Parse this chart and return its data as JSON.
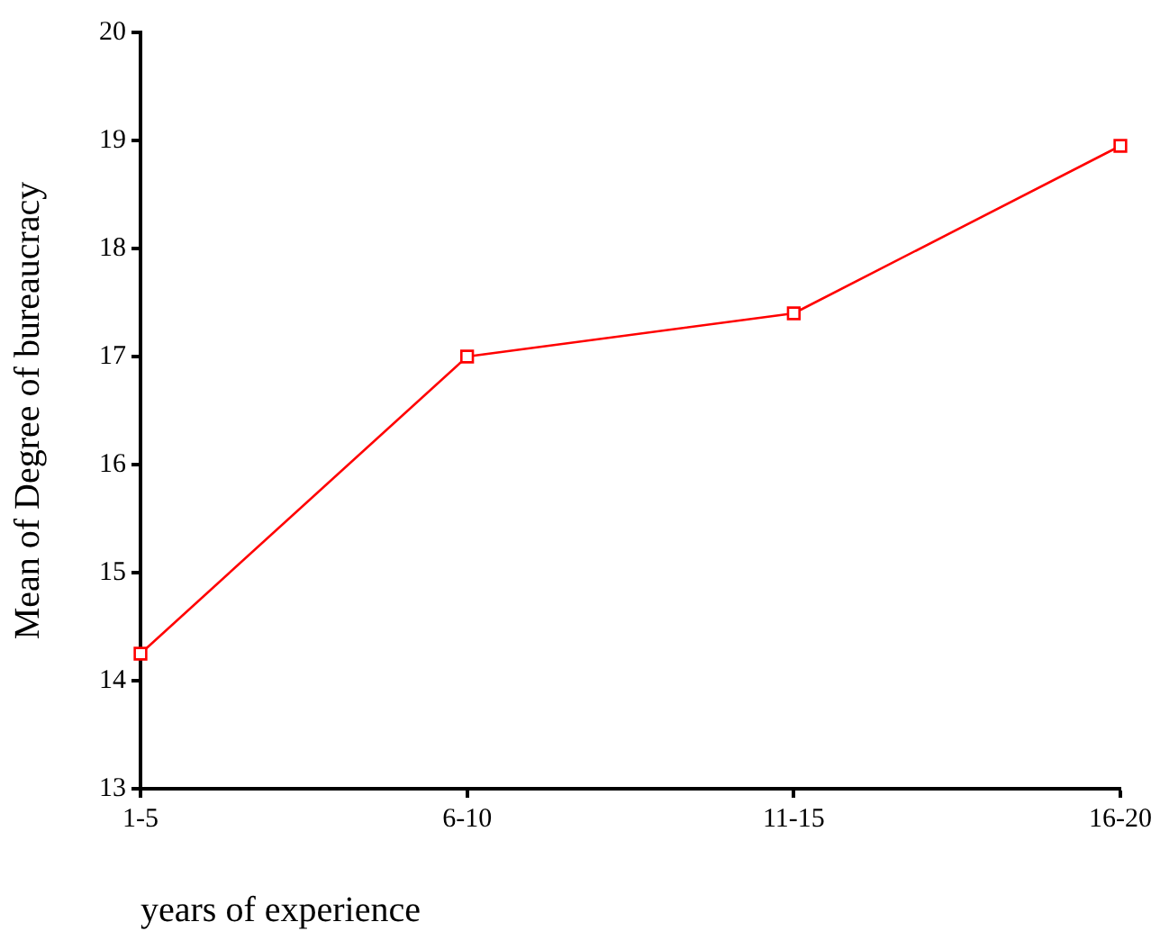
{
  "chart_data": {
    "type": "line",
    "xlabel": "years of experience",
    "ylabel": "Mean of Degree of bureaucracy",
    "categories": [
      "1-5",
      "6-10",
      "11-15",
      "16-20"
    ],
    "series": [
      {
        "color": "#ff0000",
        "values": [
          14.25,
          17.0,
          17.4,
          18.95
        ]
      }
    ],
    "ylim": [
      13,
      20
    ],
    "yticks": [
      13,
      14,
      15,
      16,
      17,
      18,
      19,
      20
    ],
    "grid": false,
    "legend": false,
    "marker": "square",
    "line_style": "solid"
  }
}
